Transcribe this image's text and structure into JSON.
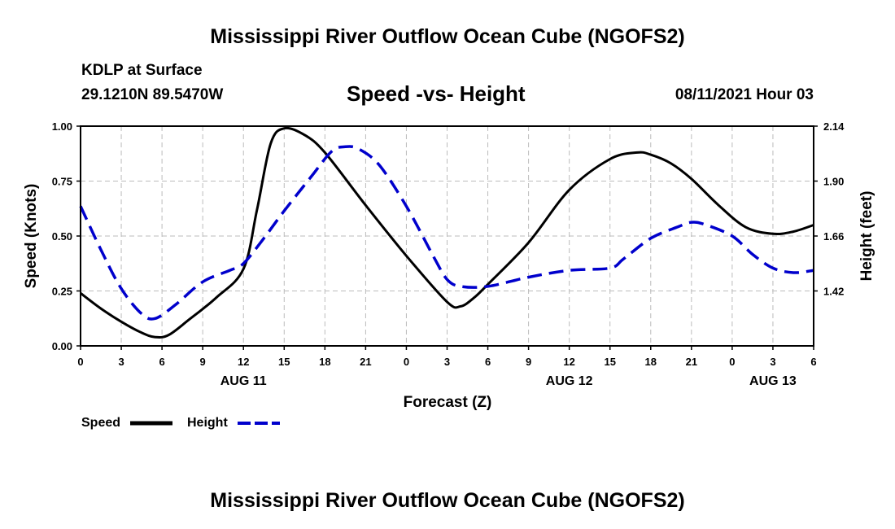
{
  "header": {
    "title_top": "Mississippi River Outflow Ocean Cube (NGOFS2)",
    "station": "KDLP at Surface",
    "coords": "29.1210N  89.5470W",
    "subtitle": "Speed -vs- Height",
    "datetime": "08/11/2021 Hour 03",
    "title_bottom": "Mississippi River Outflow Ocean Cube (NGOFS2)"
  },
  "legend": {
    "speed_label": "Speed",
    "height_label": "Height",
    "speed_color": "#000000",
    "height_color": "#0000cc"
  },
  "chart_data": {
    "type": "line",
    "title": "Speed -vs- Height",
    "xlabel": "Forecast (Z)",
    "ylabel": "Speed (Knots)",
    "y2label": "Height (feet)",
    "xlim": [
      0,
      54
    ],
    "ylim": [
      0,
      1.0
    ],
    "y2lim": [
      1.18,
      2.14
    ],
    "grid": true,
    "x_ticks": [
      0,
      3,
      6,
      9,
      12,
      15,
      18,
      21,
      24,
      27,
      30,
      33,
      36,
      39,
      42,
      45,
      48,
      51,
      54
    ],
    "x_tick_labels": [
      "0",
      "3",
      "6",
      "9",
      "12",
      "15",
      "18",
      "21",
      "0",
      "3",
      "6",
      "9",
      "12",
      "15",
      "18",
      "21",
      "0",
      "3",
      "6"
    ],
    "date_labels": [
      {
        "x": 12,
        "label": "AUG 11"
      },
      {
        "x": 36,
        "label": "AUG 12"
      },
      {
        "x": 51,
        "label": "AUG 13"
      }
    ],
    "y_ticks": [
      0,
      0.25,
      0.5,
      0.75,
      1.0
    ],
    "y_tick_labels": [
      "0.00",
      "0.25",
      "0.50",
      "0.75",
      "1.00"
    ],
    "y2_ticks": [
      1.42,
      1.66,
      1.9,
      2.14
    ],
    "y2_tick_labels": [
      "1.42",
      "1.66",
      "1.90",
      "2.14"
    ],
    "series": [
      {
        "name": "Speed",
        "axis": "left",
        "style": "solid",
        "color": "#000000",
        "x": [
          0,
          1.5,
          3,
          4.5,
          5.5,
          6.5,
          8,
          10,
          12,
          13,
          14,
          15,
          16.5,
          18,
          21,
          24,
          27,
          28,
          29,
          30,
          33,
          36,
          39,
          41,
          42,
          43.5,
          45,
          47,
          49,
          51,
          52.5,
          54
        ],
        "y": [
          0.24,
          0.17,
          0.11,
          0.06,
          0.04,
          0.05,
          0.12,
          0.22,
          0.35,
          0.62,
          0.92,
          0.99,
          0.96,
          0.88,
          0.64,
          0.41,
          0.2,
          0.18,
          0.22,
          0.28,
          0.47,
          0.71,
          0.85,
          0.88,
          0.87,
          0.83,
          0.76,
          0.64,
          0.54,
          0.51,
          0.52,
          0.55
        ]
      },
      {
        "name": "Height",
        "axis": "right",
        "style": "dashed",
        "color": "#0000cc",
        "x": [
          0,
          1.5,
          3,
          4.5,
          5.5,
          7,
          9,
          11,
          12,
          13.5,
          15,
          17,
          18.5,
          19.5,
          20.5,
          22,
          24,
          26,
          27,
          28,
          30,
          33,
          36,
          39,
          40,
          42,
          44,
          45,
          46,
          48,
          49.5,
          51,
          52.5,
          54
        ],
        "y": [
          1.79,
          1.6,
          1.43,
          1.32,
          1.3,
          1.36,
          1.46,
          1.51,
          1.54,
          1.65,
          1.77,
          1.92,
          2.03,
          2.05,
          2.04,
          1.97,
          1.79,
          1.57,
          1.47,
          1.44,
          1.44,
          1.48,
          1.51,
          1.52,
          1.56,
          1.65,
          1.7,
          1.72,
          1.71,
          1.66,
          1.58,
          1.52,
          1.5,
          1.51
        ]
      }
    ]
  }
}
